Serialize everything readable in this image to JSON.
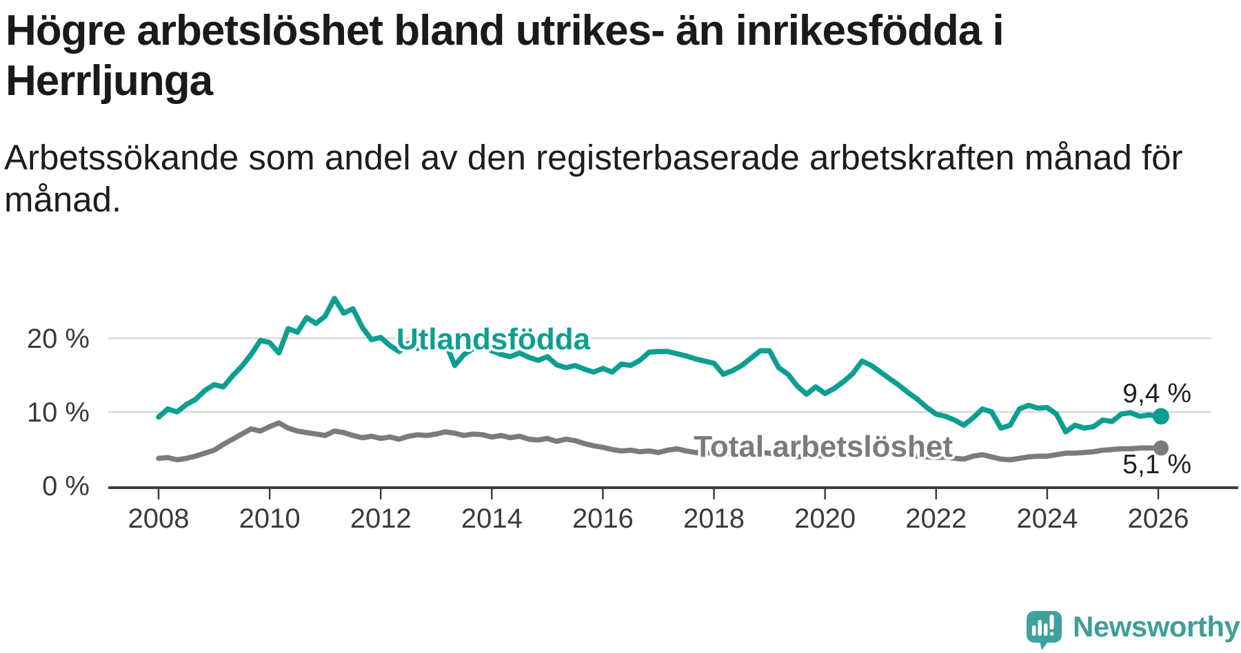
{
  "header": {
    "title": "Högre arbetslöshet bland utrikes- än inrikesfödda i Herrljunga",
    "subtitle": "Arbetssökande som andel av den registerbaserade arbetskraften månad för månad."
  },
  "chart_data": {
    "type": "line",
    "x_start": 2008,
    "x_step_months": 2,
    "xlim": [
      2008,
      2026.2
    ],
    "ylim": [
      0,
      27
    ],
    "grid": "horizontal",
    "x_ticks": [
      2008,
      2010,
      2012,
      2014,
      2016,
      2018,
      2020,
      2022,
      2024,
      2026
    ],
    "y_ticks": [
      {
        "value": 0,
        "label": "0 %"
      },
      {
        "value": 10,
        "label": "10 %"
      },
      {
        "value": 20,
        "label": "20 %"
      }
    ],
    "unit": "%",
    "series": [
      {
        "name": "Utlandsfödda",
        "color": "#0d9e92",
        "end_value": 9.4,
        "end_label": "9,4 %",
        "values": [
          9.3,
          10.4,
          10.0,
          11.0,
          11.7,
          12.9,
          13.7,
          13.4,
          14.9,
          16.2,
          17.8,
          19.7,
          19.4,
          18.0,
          21.3,
          20.8,
          22.8,
          22.0,
          23.0,
          25.4,
          23.4,
          24.0,
          21.5,
          19.8,
          20.1,
          19.0,
          18.2,
          19.3,
          18.6,
          19.0,
          18.8,
          19.4,
          16.3,
          17.8,
          18.6,
          18.9,
          18.3,
          17.8,
          17.5,
          18.0,
          17.4,
          17.0,
          17.5,
          16.4,
          16.0,
          16.3,
          15.8,
          15.4,
          15.9,
          15.4,
          16.5,
          16.3,
          17.0,
          18.1,
          18.2,
          18.2,
          17.9,
          17.6,
          17.2,
          16.9,
          16.6,
          15.1,
          15.6,
          16.3,
          17.3,
          18.3,
          18.3,
          16.0,
          15.1,
          13.5,
          12.4,
          13.4,
          12.5,
          13.2,
          14.1,
          15.2,
          16.9,
          16.3,
          15.4,
          14.5,
          13.6,
          12.6,
          11.7,
          10.6,
          9.7,
          9.4,
          8.9,
          8.2,
          9.2,
          10.4,
          10.0,
          7.8,
          8.2,
          10.4,
          10.9,
          10.5,
          10.6,
          9.7,
          7.3,
          8.2,
          7.8,
          8.0,
          8.9,
          8.7,
          9.7,
          9.9,
          9.4,
          9.6,
          9.4
        ]
      },
      {
        "name": "Total arbetslöshet",
        "color": "#7a7a7f",
        "end_value": 5.1,
        "end_label": "5,1 %",
        "values": [
          3.7,
          3.8,
          3.5,
          3.7,
          4.0,
          4.4,
          4.8,
          5.6,
          6.3,
          7.0,
          7.7,
          7.4,
          8.0,
          8.5,
          7.8,
          7.4,
          7.2,
          7.0,
          6.8,
          7.4,
          7.2,
          6.8,
          6.5,
          6.7,
          6.4,
          6.6,
          6.3,
          6.7,
          6.9,
          6.8,
          7.0,
          7.3,
          7.1,
          6.8,
          7.0,
          6.9,
          6.6,
          6.8,
          6.5,
          6.7,
          6.3,
          6.2,
          6.4,
          6.0,
          6.3,
          6.1,
          5.7,
          5.4,
          5.2,
          4.9,
          4.7,
          4.8,
          4.6,
          4.7,
          4.5,
          4.8,
          5.0,
          4.7,
          4.5,
          4.4,
          4.5,
          4.3,
          4.4,
          4.6,
          4.4,
          4.5,
          4.4,
          4.2,
          4.0,
          3.9,
          4.0,
          4.1,
          4.0,
          4.2,
          4.4,
          4.3,
          4.5,
          4.4,
          4.3,
          4.4,
          4.2,
          4.1,
          4.0,
          3.9,
          3.8,
          3.9,
          3.7,
          3.6,
          4.0,
          4.2,
          3.9,
          3.6,
          3.5,
          3.7,
          3.9,
          4.0,
          4.0,
          4.2,
          4.4,
          4.4,
          4.5,
          4.6,
          4.8,
          4.9,
          5.0,
          5.0,
          5.1,
          5.1,
          5.1
        ]
      }
    ]
  },
  "colors": {
    "background": "#ffffff",
    "grid": "#d8d8d8",
    "axis": "#3c3c3c",
    "tick_label": "#3a3a3a",
    "value_label": "#1f1f1f"
  },
  "footer": {
    "brand": "Newsworthy",
    "logo_color": "#3fa19e",
    "logo_text_color": "#3f9e9b"
  }
}
